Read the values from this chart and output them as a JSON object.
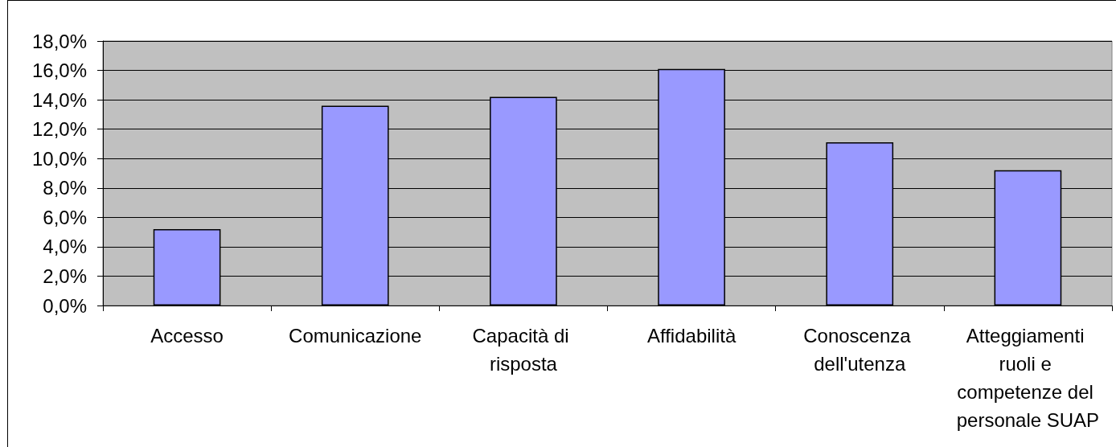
{
  "chart_data": {
    "type": "bar",
    "categories": [
      "Accesso",
      "Comunicazione",
      "Capacità di risposta",
      "Affidabilità",
      "Conoscenza dell'utenza",
      "Atteggiamenti ruoli e competenze del personale SUAP"
    ],
    "values": [
      5.2,
      13.6,
      14.2,
      16.1,
      11.1,
      9.2
    ],
    "color": "#9999ff",
    "ylim": [
      0,
      18
    ],
    "yticks": [
      {
        "value": 0,
        "label": "0,0%"
      },
      {
        "value": 2,
        "label": "2,0%"
      },
      {
        "value": 4,
        "label": "4,0%"
      },
      {
        "value": 6,
        "label": "6,0%"
      },
      {
        "value": 8,
        "label": "8,0%"
      },
      {
        "value": 10,
        "label": "10,0%"
      },
      {
        "value": 12,
        "label": "12,0%"
      },
      {
        "value": 14,
        "label": "14,0%"
      },
      {
        "value": 16,
        "label": "16,0%"
      },
      {
        "value": 18,
        "label": "18,0%"
      }
    ],
    "grid": "y"
  }
}
